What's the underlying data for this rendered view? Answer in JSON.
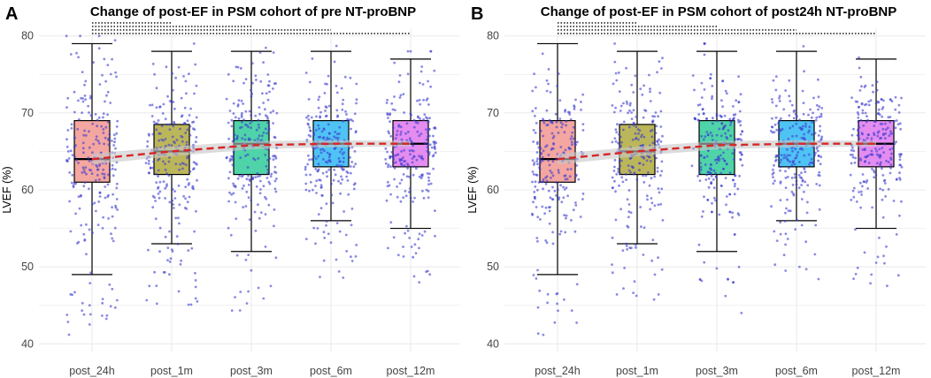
{
  "colors": {
    "box_fills": [
      "#f4a6a0",
      "#bcb65a",
      "#4fd3a8",
      "#4fc3f4",
      "#e48cf0"
    ],
    "points": "#3c3cd0",
    "trend": "#d62728",
    "band": "#c8c8c8",
    "grid": "#ebebeb"
  },
  "chart_data": [
    {
      "type": "box",
      "panel_label": "A",
      "title": "Change of post-EF in PSM cohort of pre NT-proBNP",
      "xlabel": "",
      "ylabel": "LVEF (%)",
      "ylim": [
        39,
        81
      ],
      "yticks": [
        40,
        50,
        60,
        70,
        80
      ],
      "grid": true,
      "categories": [
        "post_24h",
        "post_1m",
        "post_3m",
        "post_6m",
        "post_12m"
      ],
      "boxes": [
        {
          "min": 49,
          "q1": 61,
          "median": 64,
          "q3": 69,
          "max": 79
        },
        {
          "min": 53,
          "q1": 62,
          "median": 65,
          "q3": 68.5,
          "max": 78
        },
        {
          "min": 52,
          "q1": 62,
          "median": 66,
          "q3": 69,
          "max": 78
        },
        {
          "min": 56,
          "q1": 63,
          "median": 66,
          "q3": 69,
          "max": 78
        },
        {
          "min": 55,
          "q1": 63,
          "median": 66,
          "q3": 69,
          "max": 77
        }
      ],
      "trend_line": [
        64,
        65,
        65.8,
        66,
        66
      ],
      "significance_brackets": [
        [
          1,
          2
        ],
        [
          1,
          3
        ],
        [
          1,
          4
        ],
        [
          1,
          5
        ]
      ]
    },
    {
      "type": "box",
      "panel_label": "B",
      "title": "Change of post-EF in PSM cohort of post24h NT-proBNP",
      "xlabel": "",
      "ylabel": "LVEF (%)",
      "ylim": [
        39,
        81
      ],
      "yticks": [
        40,
        50,
        60,
        70,
        80
      ],
      "grid": true,
      "categories": [
        "post_24h",
        "post_1m",
        "post_3m",
        "post_6m",
        "post_12m"
      ],
      "boxes": [
        {
          "min": 49,
          "q1": 61,
          "median": 64,
          "q3": 69,
          "max": 79
        },
        {
          "min": 53,
          "q1": 62,
          "median": 65,
          "q3": 68.5,
          "max": 78
        },
        {
          "min": 52,
          "q1": 62,
          "median": 66,
          "q3": 69,
          "max": 78
        },
        {
          "min": 56,
          "q1": 63,
          "median": 66,
          "q3": 69,
          "max": 78
        },
        {
          "min": 55,
          "q1": 63,
          "median": 66,
          "q3": 69,
          "max": 77
        }
      ],
      "trend_line": [
        64,
        65,
        65.8,
        66,
        66
      ],
      "significance_brackets": [
        [
          1,
          2
        ],
        [
          1,
          3
        ],
        [
          1,
          4
        ],
        [
          1,
          5
        ]
      ]
    }
  ]
}
